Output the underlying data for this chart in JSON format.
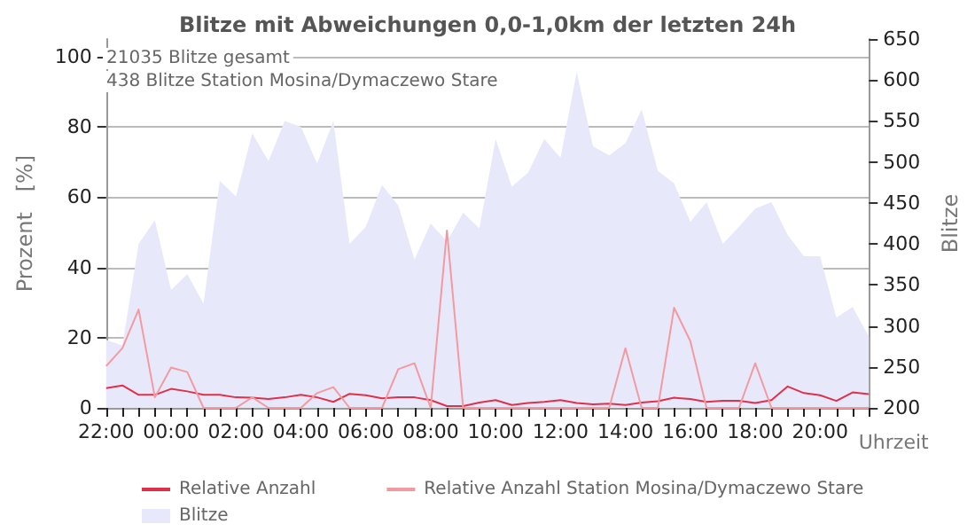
{
  "chart_data": {
    "type": "line",
    "title": "Blitze mit Abweichungen 0,0-1,0km der letzten 24h",
    "xlabel": "Uhrzeit",
    "ylabel": "Prozent   [%]",
    "y2label": "Blitze",
    "annotations": [
      "21035 Blitze gesamt",
      "438 Blitze Station Mosina/Dymaczewo Stare"
    ],
    "categories": [
      "22:00",
      null,
      null,
      null,
      "00:00",
      null,
      null,
      null,
      "02:00",
      null,
      null,
      null,
      "04:00",
      null,
      null,
      null,
      "06:00",
      null,
      null,
      null,
      "08:00",
      null,
      null,
      null,
      "10:00",
      null,
      null,
      null,
      "12:00",
      null,
      null,
      null,
      "14:00",
      null,
      null,
      null,
      "16:00",
      null,
      null,
      null,
      "18:00",
      null,
      null,
      null,
      "20:00",
      null,
      null,
      null
    ],
    "ylim": [
      0,
      105
    ],
    "yticks": [
      0,
      20,
      40,
      60,
      80,
      100
    ],
    "y2lim": [
      200,
      650
    ],
    "y2ticks": [
      200,
      250,
      300,
      350,
      400,
      450,
      500,
      550,
      600,
      650
    ],
    "grid": "y",
    "legend": "bottom",
    "marker": "none",
    "series": [
      {
        "name": "Blitze",
        "type": "area",
        "axis": "y2",
        "color": "#e8e8fb",
        "values": [
          283,
          276,
          400,
          429,
          344,
          363,
          327,
          477,
          458,
          535,
          501,
          550,
          543,
          498,
          550,
          400,
          421,
          472,
          447,
          381,
          425,
          403,
          438,
          419,
          528,
          470,
          487,
          528,
          505,
          610,
          519,
          508,
          523,
          564,
          489,
          474,
          427,
          451,
          400,
          421,
          443,
          451,
          411,
          385,
          385,
          310,
          323,
          287
        ]
      },
      {
        "name": "Relative Anzahl",
        "color": "#e0304a",
        "values": [
          5.6,
          6.4,
          3.7,
          3.7,
          5.4,
          4.7,
          3.7,
          3.7,
          3,
          2.9,
          2.5,
          3,
          3.7,
          3,
          1.7,
          4,
          3.6,
          2.7,
          3,
          3,
          2.2,
          0.5,
          0.5,
          1.5,
          2.2,
          0.8,
          1.4,
          1.7,
          2.2,
          1.4,
          1,
          1.2,
          0.8,
          1.5,
          1.9,
          2.9,
          2.5,
          1.7,
          2,
          2,
          1.4,
          2.2,
          6.1,
          4.2,
          3.6,
          2,
          4.4,
          3.9
        ]
      },
      {
        "name": "Relative Anzahl Station Mosina/Dymaczewo Stare",
        "color": "#f39aa0",
        "values": [
          11.9,
          17,
          28,
          3,
          11.5,
          10.2,
          0,
          0,
          0,
          3,
          0,
          0,
          0,
          4.2,
          5.9,
          0,
          0,
          0,
          11,
          12.7,
          0,
          50.5,
          0,
          0,
          0,
          0,
          0,
          0,
          0,
          0,
          0,
          0,
          17,
          0,
          0,
          28.5,
          19,
          0,
          0,
          0,
          12.7,
          0,
          0,
          0,
          0,
          0,
          0,
          0
        ]
      }
    ]
  }
}
